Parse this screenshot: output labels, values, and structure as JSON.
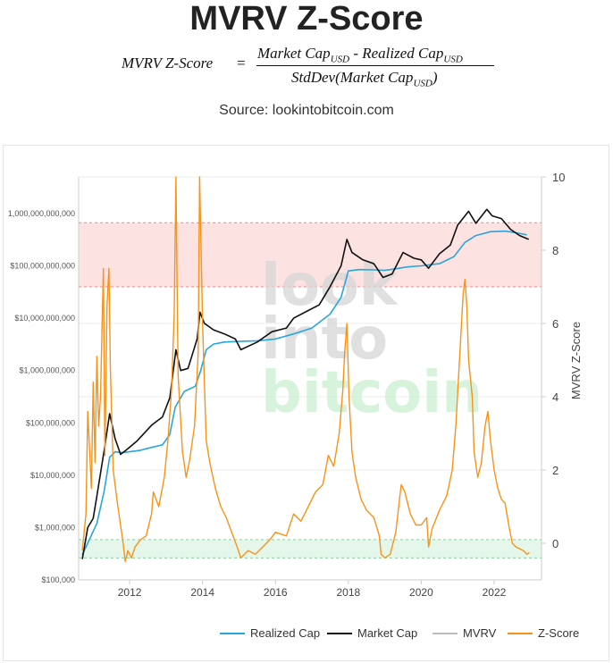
{
  "page": {
    "title": "MVRV Z-Score",
    "formula": {
      "lhs": "MVRV Z-Score",
      "numerator_a": "Market Cap",
      "numerator_op": " - ",
      "numerator_b": "Realized Cap",
      "denominator": "StdDev(Market Cap",
      "denominator_close": ")",
      "subscript": "USD"
    },
    "source": "Source: lookintobitcoin.com"
  },
  "chart_data": {
    "type": "line",
    "watermark": [
      "look",
      "into",
      "bitcoin"
    ],
    "y_left": {
      "scale": "log",
      "range": [
        100000,
        5000000000000
      ],
      "ticks": [
        100000,
        1000000,
        10000000,
        100000000,
        1000000000,
        10000000000,
        100000000000,
        1000000000000
      ],
      "tick_labels": [
        "$100,000",
        "$1,000,000",
        "$10,000,000",
        "$100,000,000",
        "$1,000,000,000",
        "$10,000,000,000",
        "$100,000,000,000",
        "1,000,000,000,000"
      ]
    },
    "y_right": {
      "label": "MVRV Z-Score",
      "range": [
        -1,
        10
      ],
      "ticks": [
        0,
        2,
        4,
        6,
        8,
        10
      ],
      "tick_labels": [
        "0",
        "2",
        "4",
        "6",
        "8",
        "10"
      ]
    },
    "x": {
      "range": [
        2010.6,
        2023.3
      ],
      "ticks": [
        2012,
        2014,
        2016,
        2018,
        2020,
        2022
      ],
      "tick_labels": [
        "2012",
        "2014",
        "2016",
        "2018",
        "2020",
        "2022"
      ]
    },
    "bands": [
      {
        "name": "overvalued",
        "from": 7,
        "to": 8.75,
        "color": "#fde2e2",
        "border": "#e88a8a"
      },
      {
        "name": "undervalued",
        "from": -0.4,
        "to": 0.1,
        "color": "#e5f6ea",
        "border": "#8ccf9f"
      }
    ],
    "series": [
      {
        "name": "Realized Cap",
        "axis": "left",
        "color": "#27a6de",
        "points": [
          [
            2010.7,
            300000
          ],
          [
            2010.9,
            600000
          ],
          [
            2011.1,
            1200000
          ],
          [
            2011.3,
            5000000
          ],
          [
            2011.45,
            22000000
          ],
          [
            2011.6,
            28000000
          ],
          [
            2011.8,
            27000000
          ],
          [
            2012.0,
            28000000
          ],
          [
            2012.3,
            30000000
          ],
          [
            2012.6,
            34000000
          ],
          [
            2012.9,
            38000000
          ],
          [
            2013.1,
            60000000
          ],
          [
            2013.25,
            200000000
          ],
          [
            2013.5,
            400000000
          ],
          [
            2013.8,
            500000000
          ],
          [
            2013.95,
            1000000000
          ],
          [
            2014.1,
            2500000000
          ],
          [
            2014.3,
            3200000000
          ],
          [
            2014.6,
            3500000000
          ],
          [
            2015.0,
            3600000000
          ],
          [
            2015.5,
            3700000000
          ],
          [
            2016.0,
            4000000000
          ],
          [
            2016.5,
            5000000000
          ],
          [
            2017.0,
            6500000000
          ],
          [
            2017.5,
            12000000000
          ],
          [
            2017.8,
            25000000000
          ],
          [
            2018.0,
            80000000000
          ],
          [
            2018.3,
            85000000000
          ],
          [
            2018.7,
            84000000000
          ],
          [
            2019.0,
            82000000000
          ],
          [
            2019.3,
            88000000000
          ],
          [
            2019.6,
            95000000000
          ],
          [
            2020.0,
            100000000000
          ],
          [
            2020.5,
            110000000000
          ],
          [
            2020.9,
            150000000000
          ],
          [
            2021.2,
            280000000000
          ],
          [
            2021.5,
            380000000000
          ],
          [
            2021.9,
            450000000000
          ],
          [
            2022.3,
            460000000000
          ],
          [
            2022.6,
            430000000000
          ],
          [
            2022.9,
            390000000000
          ]
        ]
      },
      {
        "name": "Market Cap",
        "axis": "left",
        "color": "#111111",
        "points": [
          [
            2010.7,
            250000
          ],
          [
            2010.85,
            1000000
          ],
          [
            2011.0,
            1500000
          ],
          [
            2011.1,
            4000000
          ],
          [
            2011.3,
            30000000
          ],
          [
            2011.45,
            150000000
          ],
          [
            2011.6,
            50000000
          ],
          [
            2011.75,
            25000000
          ],
          [
            2011.9,
            30000000
          ],
          [
            2012.2,
            45000000
          ],
          [
            2012.6,
            90000000
          ],
          [
            2012.9,
            130000000
          ],
          [
            2013.1,
            300000000
          ],
          [
            2013.27,
            2500000000
          ],
          [
            2013.4,
            1000000000
          ],
          [
            2013.6,
            1100000000
          ],
          [
            2013.85,
            4000000000
          ],
          [
            2013.93,
            13000000000
          ],
          [
            2014.05,
            8000000000
          ],
          [
            2014.3,
            6000000000
          ],
          [
            2014.6,
            5000000000
          ],
          [
            2014.9,
            4000000000
          ],
          [
            2015.05,
            2500000000
          ],
          [
            2015.5,
            3500000000
          ],
          [
            2015.9,
            5500000000
          ],
          [
            2016.3,
            6500000000
          ],
          [
            2016.5,
            10000000000
          ],
          [
            2016.9,
            14000000000
          ],
          [
            2017.2,
            18000000000
          ],
          [
            2017.5,
            40000000000
          ],
          [
            2017.8,
            100000000000
          ],
          [
            2017.96,
            320000000000
          ],
          [
            2018.1,
            180000000000
          ],
          [
            2018.4,
            130000000000
          ],
          [
            2018.7,
            110000000000
          ],
          [
            2018.95,
            60000000000
          ],
          [
            2019.2,
            70000000000
          ],
          [
            2019.5,
            180000000000
          ],
          [
            2019.8,
            140000000000
          ],
          [
            2020.0,
            130000000000
          ],
          [
            2020.2,
            90000000000
          ],
          [
            2020.5,
            170000000000
          ],
          [
            2020.8,
            250000000000
          ],
          [
            2021.0,
            600000000000
          ],
          [
            2021.3,
            1100000000000
          ],
          [
            2021.5,
            650000000000
          ],
          [
            2021.8,
            1200000000000
          ],
          [
            2021.95,
            900000000000
          ],
          [
            2022.2,
            800000000000
          ],
          [
            2022.45,
            500000000000
          ],
          [
            2022.7,
            380000000000
          ],
          [
            2022.95,
            320000000000
          ]
        ]
      },
      {
        "name": "MVRV",
        "axis": "none",
        "color": "#bdbdbd",
        "points": []
      },
      {
        "name": "Z-Score",
        "axis": "right",
        "color": "#f7931a",
        "points": [
          [
            2010.7,
            -0.2
          ],
          [
            2010.8,
            0.8
          ],
          [
            2010.85,
            3.6
          ],
          [
            2010.95,
            1.5
          ],
          [
            2011.0,
            4.4
          ],
          [
            2011.05,
            2.2
          ],
          [
            2011.1,
            5.1
          ],
          [
            2011.15,
            3.2
          ],
          [
            2011.2,
            4.0
          ],
          [
            2011.28,
            7.5
          ],
          [
            2011.32,
            2.4
          ],
          [
            2011.38,
            6.5
          ],
          [
            2011.43,
            7.5
          ],
          [
            2011.47,
            4.8
          ],
          [
            2011.55,
            2.0
          ],
          [
            2011.65,
            1.2
          ],
          [
            2011.75,
            0.5
          ],
          [
            2011.82,
            0.0
          ],
          [
            2011.88,
            -0.5
          ],
          [
            2011.95,
            -0.2
          ],
          [
            2012.05,
            -0.4
          ],
          [
            2012.15,
            -0.1
          ],
          [
            2012.3,
            0.1
          ],
          [
            2012.45,
            0.2
          ],
          [
            2012.6,
            0.8
          ],
          [
            2012.65,
            1.4
          ],
          [
            2012.8,
            1.0
          ],
          [
            2012.95,
            1.8
          ],
          [
            2013.05,
            2.8
          ],
          [
            2013.15,
            4.2
          ],
          [
            2013.22,
            6.2
          ],
          [
            2013.27,
            10.0
          ],
          [
            2013.33,
            4.6
          ],
          [
            2013.45,
            2.5
          ],
          [
            2013.55,
            1.8
          ],
          [
            2013.65,
            2.3
          ],
          [
            2013.78,
            3.2
          ],
          [
            2013.88,
            5.2
          ],
          [
            2013.92,
            10.0
          ],
          [
            2014.0,
            6.0
          ],
          [
            2014.1,
            2.8
          ],
          [
            2014.2,
            2.2
          ],
          [
            2014.35,
            1.5
          ],
          [
            2014.5,
            1.0
          ],
          [
            2014.65,
            0.7
          ],
          [
            2014.8,
            0.3
          ],
          [
            2014.95,
            -0.1
          ],
          [
            2015.05,
            -0.4
          ],
          [
            2015.25,
            -0.2
          ],
          [
            2015.45,
            -0.3
          ],
          [
            2015.65,
            -0.1
          ],
          [
            2015.85,
            0.1
          ],
          [
            2016.0,
            0.3
          ],
          [
            2016.3,
            0.2
          ],
          [
            2016.5,
            0.8
          ],
          [
            2016.7,
            0.6
          ],
          [
            2016.9,
            1.0
          ],
          [
            2017.1,
            1.4
          ],
          [
            2017.3,
            1.6
          ],
          [
            2017.45,
            2.4
          ],
          [
            2017.6,
            2.1
          ],
          [
            2017.75,
            3.0
          ],
          [
            2017.85,
            4.2
          ],
          [
            2017.9,
            5.2
          ],
          [
            2017.96,
            6.0
          ],
          [
            2018.02,
            4.0
          ],
          [
            2018.1,
            2.5
          ],
          [
            2018.2,
            1.8
          ],
          [
            2018.35,
            1.2
          ],
          [
            2018.5,
            0.9
          ],
          [
            2018.7,
            0.7
          ],
          [
            2018.85,
            0.2
          ],
          [
            2018.9,
            -0.3
          ],
          [
            2019.0,
            -0.4
          ],
          [
            2019.15,
            -0.3
          ],
          [
            2019.3,
            0.3
          ],
          [
            2019.45,
            1.6
          ],
          [
            2019.55,
            1.4
          ],
          [
            2019.7,
            0.8
          ],
          [
            2019.85,
            0.5
          ],
          [
            2020.0,
            0.5
          ],
          [
            2020.15,
            0.7
          ],
          [
            2020.2,
            -0.1
          ],
          [
            2020.3,
            0.4
          ],
          [
            2020.5,
            0.9
          ],
          [
            2020.7,
            1.3
          ],
          [
            2020.85,
            2.0
          ],
          [
            2020.95,
            3.2
          ],
          [
            2021.05,
            5.0
          ],
          [
            2021.15,
            6.8
          ],
          [
            2021.2,
            7.2
          ],
          [
            2021.25,
            6.5
          ],
          [
            2021.3,
            5.0
          ],
          [
            2021.4,
            4.0
          ],
          [
            2021.45,
            2.5
          ],
          [
            2021.55,
            1.8
          ],
          [
            2021.65,
            2.2
          ],
          [
            2021.75,
            3.2
          ],
          [
            2021.83,
            3.6
          ],
          [
            2021.9,
            2.8
          ],
          [
            2022.0,
            2.0
          ],
          [
            2022.1,
            1.5
          ],
          [
            2022.2,
            1.2
          ],
          [
            2022.3,
            1.1
          ],
          [
            2022.4,
            0.5
          ],
          [
            2022.5,
            0.0
          ],
          [
            2022.6,
            -0.1
          ],
          [
            2022.7,
            -0.15
          ],
          [
            2022.8,
            -0.2
          ],
          [
            2022.9,
            -0.3
          ],
          [
            2022.97,
            -0.25
          ]
        ]
      }
    ],
    "legend": {
      "position": "bottom-right",
      "entries": [
        {
          "label": "Realized Cap",
          "color": "#27a6de",
          "muted": false
        },
        {
          "label": "Market Cap",
          "color": "#111111",
          "muted": false
        },
        {
          "label": "MVRV",
          "color": "#bdbdbd",
          "muted": true
        },
        {
          "label": "Z-Score",
          "color": "#f7931a",
          "muted": false
        }
      ]
    }
  }
}
